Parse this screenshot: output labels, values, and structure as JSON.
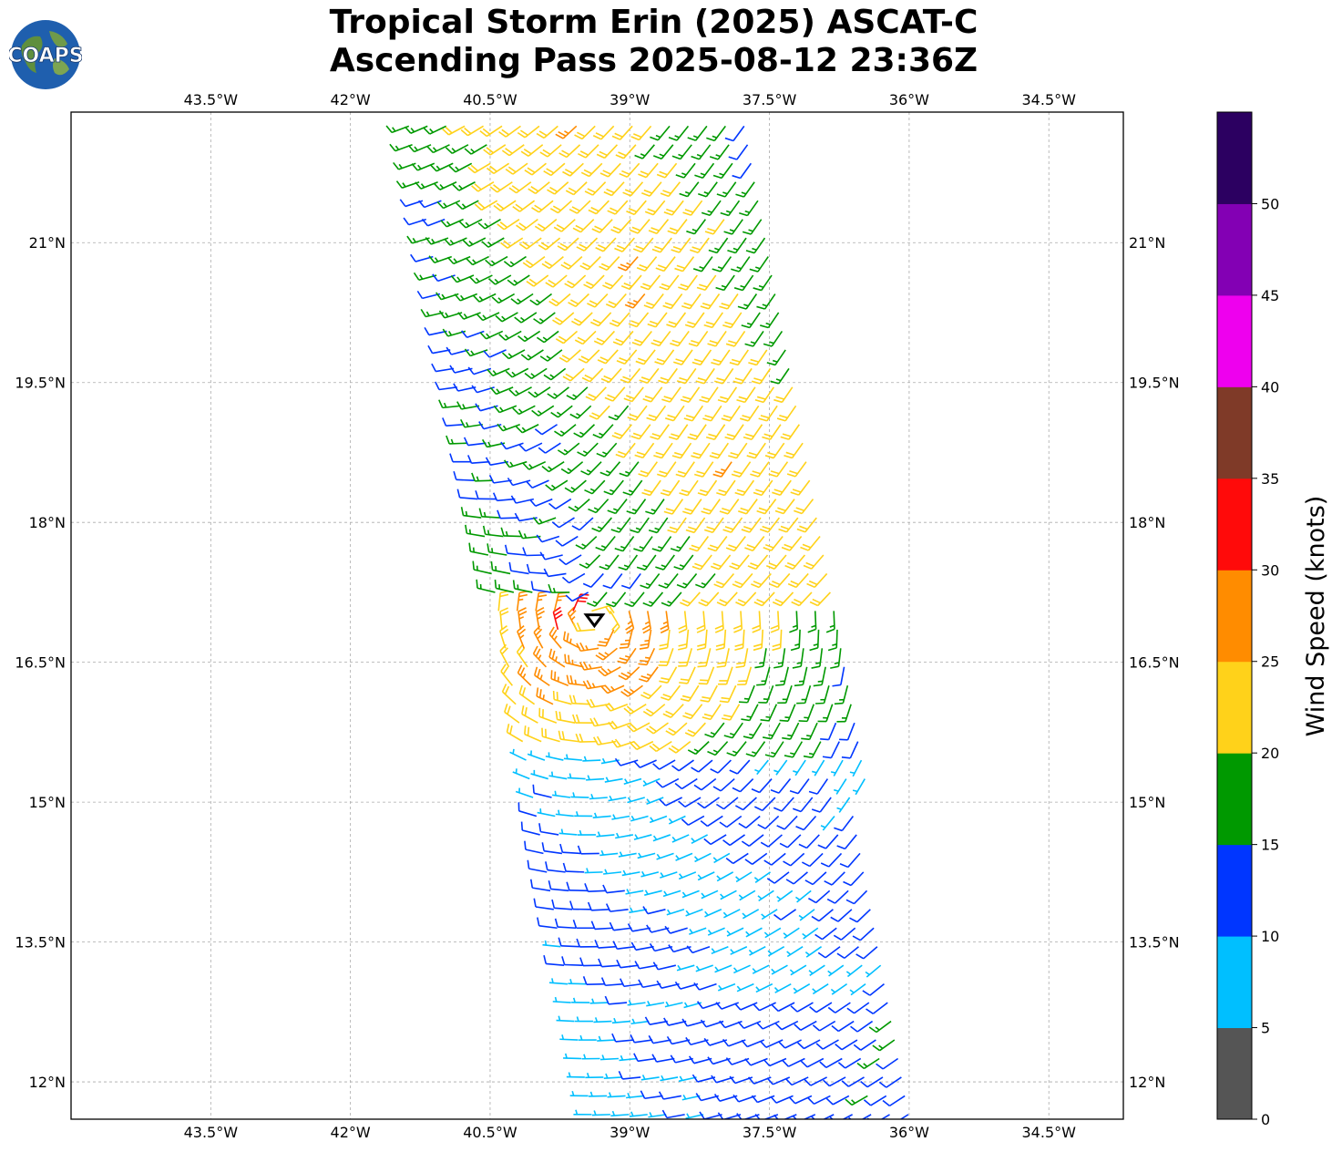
{
  "title": {
    "line1": "Tropical Storm Erin (2025) ASCAT-C",
    "line2": "Ascending Pass 2025-08-12 23:36Z"
  },
  "logo": {
    "text": "COAPS",
    "icon": "globe-logo"
  },
  "map": {
    "lon_range": [
      -45.0,
      -33.7
    ],
    "lat_range": [
      11.6,
      22.4
    ],
    "lon_ticks": [
      {
        "value": -43.5,
        "label": "43.5°W"
      },
      {
        "value": -42.0,
        "label": "42°W"
      },
      {
        "value": -40.5,
        "label": "40.5°W"
      },
      {
        "value": -39.0,
        "label": "39°W"
      },
      {
        "value": -37.5,
        "label": "37.5°W"
      },
      {
        "value": -36.0,
        "label": "36°W"
      },
      {
        "value": -34.5,
        "label": "34.5°W"
      }
    ],
    "lat_ticks": [
      {
        "value": 21.0,
        "label": "21°N"
      },
      {
        "value": 19.5,
        "label": "19.5°N"
      },
      {
        "value": 18.0,
        "label": "18°N"
      },
      {
        "value": 16.5,
        "label": "16.5°N"
      },
      {
        "value": 15.0,
        "label": "15°N"
      },
      {
        "value": 13.5,
        "label": "13.5°N"
      },
      {
        "value": 12.0,
        "label": "12°N"
      }
    ],
    "gridlines": true,
    "storm_center": {
      "lon": -39.38,
      "lat": 16.95,
      "symbol": "tropical-storm-marker"
    },
    "swath": {
      "corners": [
        [
          -41.4,
          22.4
        ],
        [
          -37.6,
          22.4
        ],
        [
          -35.9,
          11.6
        ],
        [
          -39.4,
          11.6
        ]
      ],
      "grid_spacing_deg": 0.2
    }
  },
  "colorbar": {
    "label": "Wind Speed (knots)",
    "bounds": [
      0,
      5,
      10,
      15,
      20,
      25,
      30,
      35,
      40,
      45,
      50,
      55
    ],
    "colors": [
      "#555555",
      "#00bfff",
      "#0036ff",
      "#009900",
      "#ffd21a",
      "#ff8c00",
      "#ff0a0a",
      "#7f3a28",
      "#ee00ee",
      "#8300b4",
      "#2c0061"
    ],
    "tick_labels": [
      "0",
      "5",
      "10",
      "15",
      "20",
      "25",
      "30",
      "35",
      "40",
      "45",
      "50"
    ]
  }
}
